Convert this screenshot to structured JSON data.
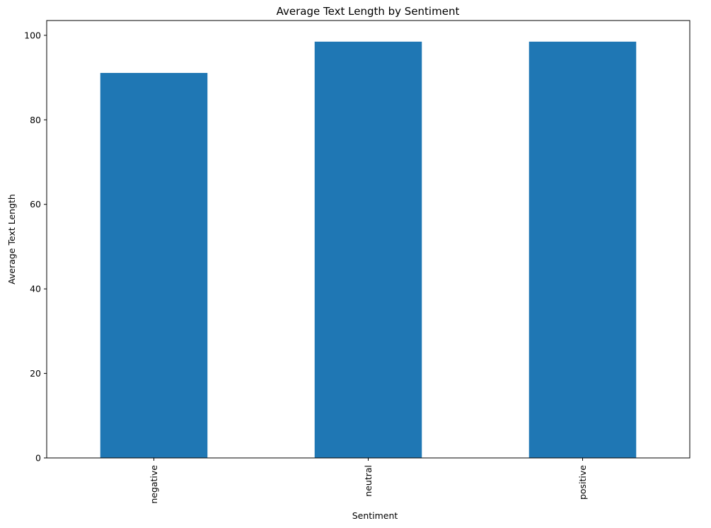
{
  "chart_data": {
    "type": "bar",
    "title": "Average Text Length by Sentiment",
    "xlabel": "Sentiment",
    "ylabel": "Average Text Length",
    "categories": [
      "negative",
      "neutral",
      "positive"
    ],
    "values": [
      91.1,
      98.5,
      98.5
    ],
    "ylim": [
      0,
      103.5
    ],
    "yticks": [
      0,
      20,
      40,
      60,
      80,
      100
    ],
    "grid": false,
    "bar_color": "#1f77b4",
    "x_tick_rotation": 90
  }
}
